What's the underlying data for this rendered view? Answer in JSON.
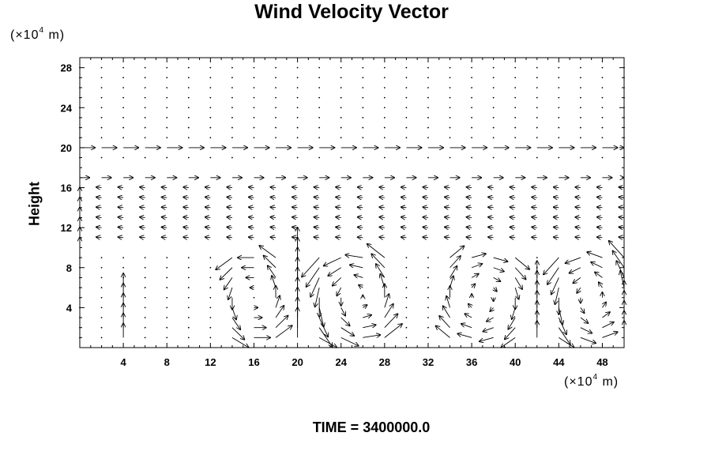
{
  "chart_data": {
    "type": "vector-field",
    "title": "Wind Velocity Vector",
    "xlabel": "",
    "ylabel": "Height",
    "x_unit": {
      "pre": "(×10",
      "sup": "4",
      "post": " m)"
    },
    "y_unit": {
      "pre": "(×10",
      "sup": "4",
      "post": " m)"
    },
    "xlim": [
      0,
      50
    ],
    "ylim": [
      0,
      29
    ],
    "x_ticks": [
      4,
      8,
      12,
      16,
      20,
      24,
      28,
      32,
      36,
      40,
      44,
      48
    ],
    "y_ticks": [
      4,
      8,
      12,
      16,
      20,
      24,
      28
    ],
    "grid": false,
    "footer": "TIME = 3400000.0",
    "vectors": {
      "x": [
        0,
        2,
        4,
        6,
        8,
        10,
        12,
        14,
        16,
        18,
        20,
        22,
        24,
        26,
        28,
        30,
        32,
        34,
        36,
        38,
        40,
        42,
        44,
        46,
        48,
        50
      ],
      "y": [
        1,
        2,
        3,
        4,
        5,
        6,
        7,
        8,
        9,
        11,
        12,
        13,
        14,
        15,
        16,
        17,
        19,
        20,
        21,
        22,
        23,
        24,
        25,
        26,
        27,
        28
      ],
      "regions": [
        {
          "x": [
            0,
            50
          ],
          "y": [
            20,
            20
          ],
          "u": 1.4,
          "v": 0
        },
        {
          "x": [
            0,
            50
          ],
          "y": [
            17,
            17
          ],
          "u": 0.9,
          "v": 0
        },
        {
          "x": [
            0,
            50
          ],
          "y": [
            11,
            16
          ],
          "u": -0.5,
          "v": 0.05
        },
        {
          "x": [
            0,
            50
          ],
          "y": [
            21,
            28
          ],
          "u": 0.15,
          "v": 0
        },
        {
          "x": [
            13,
            19
          ],
          "y": [
            1,
            9
          ],
          "vortex": "ccw",
          "strength": 1.5
        },
        {
          "x": [
            22,
            29
          ],
          "y": [
            1,
            9
          ],
          "vortex": "ccw",
          "strength": 1.6
        },
        {
          "x": [
            33,
            41
          ],
          "y": [
            1,
            9
          ],
          "vortex": "cw",
          "strength": 1.3
        },
        {
          "x": [
            44,
            50
          ],
          "y": [
            1,
            9
          ],
          "vortex": "ccw",
          "strength": 1.4
        },
        {
          "x": [
            20,
            20
          ],
          "y": [
            1,
            9
          ],
          "u": 0,
          "v": 2.5
        },
        {
          "x": [
            4,
            4
          ],
          "y": [
            1,
            6
          ],
          "u": 0,
          "v": 1.2
        },
        {
          "x": [
            42,
            42
          ],
          "y": [
            1,
            7
          ],
          "u": 0,
          "v": 1.4
        }
      ]
    }
  }
}
